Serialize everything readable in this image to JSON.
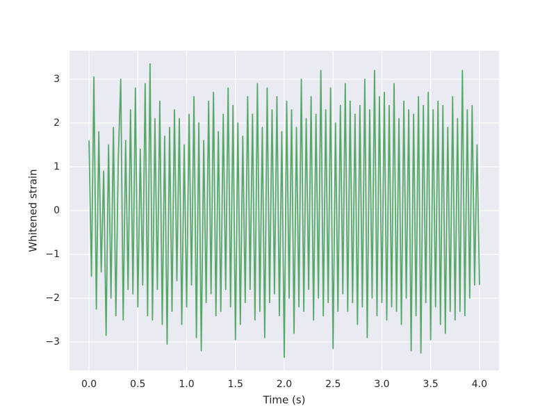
{
  "chart_data": {
    "type": "line",
    "x_label": "Time (s)",
    "y_label": "Whitened strain",
    "xlim": [
      -0.2,
      4.2
    ],
    "ylim": [
      -3.65,
      3.65
    ],
    "xticks": [
      {
        "value": 0,
        "label": "0.0"
      },
      0.5,
      {
        "value": 1,
        "label": "1.0"
      },
      1.5,
      {
        "value": 2,
        "label": "2.0"
      },
      2.5,
      {
        "value": 3,
        "label": "3.0"
      },
      3.5,
      {
        "value": 4,
        "label": "4.0"
      }
    ],
    "yticks": [
      {
        "value": -3,
        "label": "−3"
      },
      {
        "value": -2,
        "label": "−2"
      },
      {
        "value": -1,
        "label": "−1"
      },
      0,
      1,
      2,
      3
    ],
    "grid": true,
    "background": "#eaeaf2",
    "x": [
      0,
      0.025,
      0.05,
      0.075,
      0.1,
      0.125,
      0.15,
      0.175,
      0.2,
      0.225,
      0.25,
      0.275,
      0.3,
      0.325,
      0.35,
      0.375,
      0.4,
      0.425,
      0.45,
      0.475,
      0.5,
      0.525,
      0.55,
      0.575,
      0.6,
      0.625,
      0.65,
      0.675,
      0.7,
      0.725,
      0.75,
      0.775,
      0.8,
      0.825,
      0.85,
      0.875,
      0.9,
      0.925,
      0.95,
      0.975,
      1.0,
      1.025,
      1.05,
      1.075,
      1.1,
      1.125,
      1.15,
      1.175,
      1.2,
      1.225,
      1.25,
      1.275,
      1.3,
      1.325,
      1.35,
      1.375,
      1.4,
      1.425,
      1.45,
      1.475,
      1.5,
      1.525,
      1.55,
      1.575,
      1.6,
      1.625,
      1.65,
      1.675,
      1.7,
      1.725,
      1.75,
      1.775,
      1.8,
      1.825,
      1.85,
      1.875,
      1.9,
      1.925,
      1.95,
      1.975,
      2.0,
      2.025,
      2.05,
      2.075,
      2.1,
      2.125,
      2.15,
      2.175,
      2.2,
      2.225,
      2.25,
      2.275,
      2.3,
      2.325,
      2.35,
      2.375,
      2.4,
      2.425,
      2.45,
      2.475,
      2.5,
      2.525,
      2.55,
      2.575,
      2.6,
      2.625,
      2.65,
      2.675,
      2.7,
      2.725,
      2.75,
      2.775,
      2.8,
      2.825,
      2.85,
      2.875,
      2.9,
      2.925,
      2.95,
      2.975,
      3.0,
      3.025,
      3.05,
      3.075,
      3.1,
      3.125,
      3.15,
      3.175,
      3.2,
      3.225,
      3.25,
      3.275,
      3.3,
      3.325,
      3.35,
      3.375,
      3.4,
      3.425,
      3.45,
      3.475,
      3.5,
      3.525,
      3.55,
      3.575,
      3.6,
      3.625,
      3.65,
      3.675,
      3.7,
      3.725,
      3.75,
      3.775,
      3.8,
      3.825,
      3.85,
      3.875,
      3.9,
      3.925,
      3.95,
      3.975,
      4.0
    ],
    "series": [
      {
        "color": "#55a868",
        "values": [
          1.6,
          -1.5,
          3.05,
          -2.25,
          1.8,
          -1.4,
          0.9,
          -2.85,
          1.5,
          -2.0,
          1.9,
          -2.4,
          1.2,
          3.0,
          -2.5,
          1.6,
          -1.8,
          2.3,
          -1.9,
          2.8,
          -2.2,
          1.4,
          -1.7,
          2.9,
          -2.4,
          3.35,
          -2.5,
          2.1,
          -1.8,
          2.5,
          -2.6,
          1.7,
          -3.05,
          1.9,
          -2.3,
          2.3,
          -1.6,
          2.1,
          -2.6,
          1.5,
          -2.2,
          2.2,
          -1.7,
          2.6,
          -2.9,
          2.0,
          -3.2,
          1.6,
          -2.1,
          2.5,
          -1.9,
          2.7,
          -2.4,
          1.8,
          -2.3,
          2.2,
          -1.8,
          2.8,
          -2.2,
          2.4,
          -2.95,
          2.0,
          -2.6,
          1.7,
          -2.1,
          2.6,
          -1.8,
          2.2,
          -2.5,
          2.9,
          -2.3,
          1.9,
          -2.9,
          2.8,
          -2.1,
          2.3,
          -1.9,
          2.6,
          -2.4,
          1.8,
          -3.35,
          2.5,
          -2.0,
          2.3,
          -2.8,
          1.9,
          -2.2,
          3.0,
          -2.3,
          2.1,
          -1.8,
          2.6,
          -2.5,
          2.2,
          -2.0,
          3.2,
          -2.4,
          2.3,
          -2.1,
          2.8,
          -3.15,
          2.0,
          -2.3,
          2.4,
          -1.9,
          2.9,
          -2.3,
          2.5,
          -2.1,
          2.2,
          -2.6,
          2.4,
          -2.2,
          3.0,
          -2.9,
          2.3,
          -2.0,
          3.2,
          -2.4,
          2.6,
          -2.1,
          2.7,
          -2.5,
          2.4,
          -2.2,
          2.9,
          -2.3,
          2.1,
          -2.6,
          2.5,
          -2.0,
          2.3,
          -3.2,
          2.2,
          -2.4,
          2.6,
          -3.25,
          2.4,
          -2.1,
          2.7,
          -2.95,
          2.3,
          -2.2,
          2.5,
          -2.6,
          2.4,
          -2.8,
          1.9,
          -2.3,
          2.6,
          -2.5,
          2.1,
          -2.3,
          3.2,
          -2.4,
          2.3,
          -2.0,
          2.4,
          -1.7,
          1.5,
          -1.7
        ]
      }
    ]
  }
}
